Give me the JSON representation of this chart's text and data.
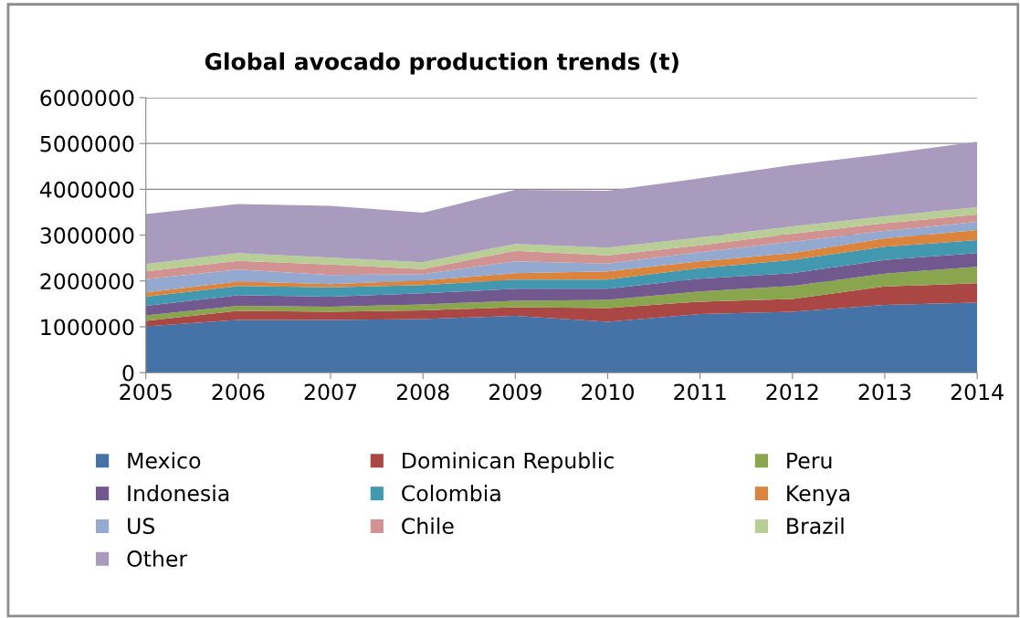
{
  "chart_data": {
    "type": "area",
    "stacked": true,
    "title": "Global avocado production trends (t)",
    "x": [
      2005,
      2006,
      2007,
      2008,
      2009,
      2010,
      2011,
      2012,
      2013,
      2014
    ],
    "xlim": [
      2005,
      2014
    ],
    "xticks": [
      2005,
      2006,
      2007,
      2008,
      2009,
      2010,
      2011,
      2012,
      2013,
      2014
    ],
    "ylim": [
      0,
      6000000
    ],
    "yticks": [
      0,
      1000000,
      2000000,
      3000000,
      4000000,
      5000000,
      6000000
    ],
    "grid": "y",
    "legend": "bottom",
    "series": [
      {
        "name": "Mexico",
        "color": "#4572a7",
        "values": [
          1010000,
          1150000,
          1150000,
          1170000,
          1240000,
          1110000,
          1280000,
          1330000,
          1480000,
          1530000
        ]
      },
      {
        "name": "Dominican Republic",
        "color": "#aa4643",
        "values": [
          120000,
          200000,
          180000,
          190000,
          190000,
          300000,
          270000,
          280000,
          400000,
          420000
        ]
      },
      {
        "name": "Peru",
        "color": "#89a54e",
        "values": [
          120000,
          110000,
          110000,
          130000,
          140000,
          180000,
          220000,
          280000,
          280000,
          360000
        ]
      },
      {
        "name": "Indonesia",
        "color": "#71588f",
        "values": [
          210000,
          230000,
          220000,
          240000,
          260000,
          240000,
          280000,
          280000,
          300000,
          300000
        ]
      },
      {
        "name": "Colombia",
        "color": "#4198af",
        "values": [
          200000,
          200000,
          200000,
          180000,
          200000,
          200000,
          230000,
          290000,
          290000,
          280000
        ]
      },
      {
        "name": "Kenya",
        "color": "#db843d",
        "values": [
          90000,
          100000,
          70000,
          100000,
          140000,
          180000,
          150000,
          150000,
          180000,
          220000
        ]
      },
      {
        "name": "US",
        "color": "#93a9cf",
        "values": [
          290000,
          260000,
          200000,
          140000,
          260000,
          170000,
          200000,
          250000,
          160000,
          180000
        ]
      },
      {
        "name": "Chile",
        "color": "#d19392",
        "values": [
          170000,
          190000,
          230000,
          110000,
          230000,
          180000,
          150000,
          170000,
          170000,
          160000
        ]
      },
      {
        "name": "Brazil",
        "color": "#b9cd96",
        "values": [
          160000,
          170000,
          150000,
          150000,
          150000,
          170000,
          170000,
          160000,
          150000,
          160000
        ]
      },
      {
        "name": "Other",
        "color": "#a99bbd",
        "values": [
          1090000,
          1070000,
          1130000,
          1080000,
          1180000,
          1240000,
          1290000,
          1340000,
          1360000,
          1430000
        ]
      }
    ]
  }
}
